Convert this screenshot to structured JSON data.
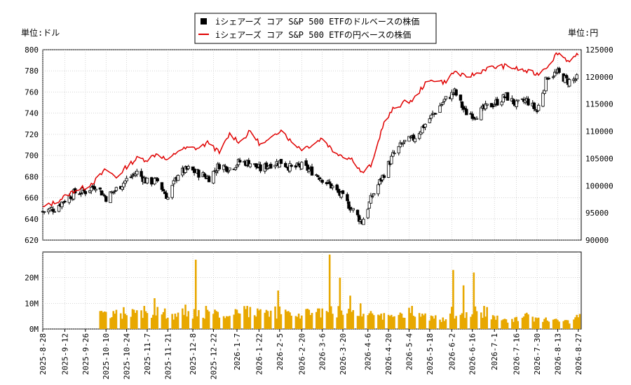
{
  "chart_data": [
    {
      "type": "candlestick+line",
      "legend": [
        "iシェアーズ コア S&P 500 ETFのドルベースの株価",
        "iシェアーズ コア S&P 500 ETFの円ベースの株価"
      ],
      "legend_position": "top-center",
      "left_unit": "単位:ドル",
      "right_unit": "単位:円",
      "ylim_left": [
        620,
        800
      ],
      "ylim_right": [
        90000,
        125000
      ],
      "yticks_left": [
        620,
        640,
        660,
        680,
        700,
        720,
        740,
        760,
        780,
        800
      ],
      "yticks_right": [
        90000,
        95000,
        100000,
        105000,
        110000,
        115000,
        120000,
        125000
      ],
      "grid": true,
      "dollar_close_weekly": [
        [
          "2025-08-28",
          647
        ],
        [
          "2025-09-05",
          650
        ],
        [
          "2025-09-12",
          658
        ],
        [
          "2025-09-19",
          665
        ],
        [
          "2025-09-26",
          666
        ],
        [
          "2025-10-03",
          672
        ],
        [
          "2025-10-10",
          660
        ],
        [
          "2025-10-17",
          668
        ],
        [
          "2025-10-24",
          677
        ],
        [
          "2025-10-31",
          684
        ],
        [
          "2025-11-07",
          675
        ],
        [
          "2025-11-14",
          676
        ],
        [
          "2025-11-21",
          660
        ],
        [
          "2025-11-28",
          683
        ],
        [
          "2025-12-05",
          687
        ],
        [
          "2025-12-12",
          683
        ],
        [
          "2025-12-19",
          679
        ],
        [
          "2025-12-26",
          691
        ],
        [
          "2026-01-02",
          688
        ],
        [
          "2026-01-09",
          694
        ],
        [
          "2026-01-16",
          693
        ],
        [
          "2026-01-23",
          687
        ],
        [
          "2026-01-30",
          692
        ],
        [
          "2026-02-06",
          694
        ],
        [
          "2026-02-13",
          688
        ],
        [
          "2026-02-20",
          690
        ],
        [
          "2026-02-27",
          685
        ],
        [
          "2026-03-06",
          678
        ],
        [
          "2026-03-13",
          670
        ],
        [
          "2026-03-20",
          660
        ],
        [
          "2026-03-27",
          648
        ],
        [
          "2026-04-02",
          637
        ],
        [
          "2026-04-09",
          662
        ],
        [
          "2026-04-16",
          680
        ],
        [
          "2026-04-23",
          700
        ],
        [
          "2026-04-30",
          712
        ],
        [
          "2026-05-07",
          716
        ],
        [
          "2026-05-14",
          728
        ],
        [
          "2026-05-21",
          740
        ],
        [
          "2026-05-28",
          752
        ],
        [
          "2026-06-04",
          760
        ],
        [
          "2026-06-11",
          741
        ],
        [
          "2026-06-18",
          738
        ],
        [
          "2026-06-25",
          745
        ],
        [
          "2026-07-02",
          750
        ],
        [
          "2026-07-09",
          756
        ],
        [
          "2026-07-16",
          748
        ],
        [
          "2026-07-23",
          752
        ],
        [
          "2026-07-30",
          742
        ],
        [
          "2026-08-06",
          775
        ],
        [
          "2026-08-13",
          778
        ],
        [
          "2026-08-20",
          770
        ],
        [
          "2026-08-27",
          773
        ]
      ],
      "yen_close_weekly": [
        [
          "2025-08-28",
          96000
        ],
        [
          "2025-09-05",
          96900
        ],
        [
          "2025-09-12",
          98000
        ],
        [
          "2025-09-19",
          99200
        ],
        [
          "2025-09-26",
          99700
        ],
        [
          "2025-10-03",
          101000
        ],
        [
          "2025-10-10",
          103000
        ],
        [
          "2025-10-17",
          101500
        ],
        [
          "2025-10-24",
          103500
        ],
        [
          "2025-10-31",
          105000
        ],
        [
          "2025-11-07",
          104800
        ],
        [
          "2025-11-14",
          106000
        ],
        [
          "2025-11-21",
          104500
        ],
        [
          "2025-11-28",
          106500
        ],
        [
          "2025-12-05",
          106900
        ],
        [
          "2025-12-12",
          106900
        ],
        [
          "2025-12-19",
          108000
        ],
        [
          "2025-12-26",
          106000
        ],
        [
          "2026-01-02",
          109500
        ],
        [
          "2026-01-09",
          108000
        ],
        [
          "2026-01-16",
          110000
        ],
        [
          "2026-01-23",
          107500
        ],
        [
          "2026-01-30",
          108500
        ],
        [
          "2026-02-06",
          110500
        ],
        [
          "2026-02-13",
          108000
        ],
        [
          "2026-02-20",
          106800
        ],
        [
          "2026-02-27",
          107500
        ],
        [
          "2026-03-06",
          108800
        ],
        [
          "2026-03-13",
          106500
        ],
        [
          "2026-03-20",
          105500
        ],
        [
          "2026-03-27",
          104800
        ],
        [
          "2026-04-02",
          102300
        ],
        [
          "2026-04-09",
          104000
        ],
        [
          "2026-04-16",
          111000
        ],
        [
          "2026-04-23",
          114000
        ],
        [
          "2026-04-30",
          115200
        ],
        [
          "2026-05-07",
          115800
        ],
        [
          "2026-05-14",
          118500
        ],
        [
          "2026-05-21",
          119500
        ],
        [
          "2026-05-28",
          119000
        ],
        [
          "2026-06-04",
          121000
        ],
        [
          "2026-06-11",
          120000
        ],
        [
          "2026-06-18",
          120500
        ],
        [
          "2026-06-25",
          121500
        ],
        [
          "2026-07-02",
          121800
        ],
        [
          "2026-07-09",
          122000
        ],
        [
          "2026-07-16",
          121500
        ],
        [
          "2026-07-23",
          121000
        ],
        [
          "2026-07-30",
          120500
        ],
        [
          "2026-08-06",
          122000
        ],
        [
          "2026-08-13",
          124500
        ],
        [
          "2026-08-20",
          123000
        ],
        [
          "2026-08-27",
          124000
        ]
      ]
    },
    {
      "type": "bar",
      "ylim": [
        0,
        30000000
      ],
      "ytick_labels": [
        "0M",
        "10M",
        "20M"
      ],
      "grid": true,
      "xtick_labels": [
        "2025-8-28",
        "2025-9-12",
        "2025-9-26",
        "2025-10-10",
        "2025-10-24",
        "2025-11-7",
        "2025-11-21",
        "2025-12-8",
        "2025-12-22",
        "2026-1-7",
        "2026-1-22",
        "2026-2-5",
        "2026-2-20",
        "2026-3-6",
        "2026-3-20",
        "2026-4-6",
        "2026-4-20",
        "2026-5-4",
        "2026-5-18",
        "2026-6-2",
        "2026-6-16",
        "2026-7-1",
        "2026-7-16",
        "2026-7-30",
        "2026-8-13",
        "2026-8-27"
      ],
      "volume_weekly": [
        [
          "2025-10-06",
          6500000
        ],
        [
          "2025-10-13",
          7000000
        ],
        [
          "2025-10-20",
          8500000
        ],
        [
          "2025-10-27",
          7500000
        ],
        [
          "2025-11-03",
          9000000
        ],
        [
          "2025-11-10",
          12000000
        ],
        [
          "2025-11-17",
          8000000
        ],
        [
          "2025-11-24",
          6000000
        ],
        [
          "2025-12-01",
          9500000
        ],
        [
          "2025-12-08",
          27000000
        ],
        [
          "2025-12-15",
          9000000
        ],
        [
          "2025-12-22",
          7000000
        ],
        [
          "2025-12-29",
          5000000
        ],
        [
          "2026-01-05",
          7500000
        ],
        [
          "2026-01-12",
          9000000
        ],
        [
          "2026-01-19",
          8000000
        ],
        [
          "2026-01-26",
          7000000
        ],
        [
          "2026-02-02",
          15000000
        ],
        [
          "2026-02-09",
          7000000
        ],
        [
          "2026-02-16",
          6000000
        ],
        [
          "2026-02-23",
          7500000
        ],
        [
          "2026-03-02",
          8000000
        ],
        [
          "2026-03-09",
          29000000
        ],
        [
          "2026-03-16",
          20000000
        ],
        [
          "2026-03-23",
          13000000
        ],
        [
          "2026-03-30",
          10000000
        ],
        [
          "2026-04-06",
          7000000
        ],
        [
          "2026-04-13",
          6000000
        ],
        [
          "2026-04-20",
          5500000
        ],
        [
          "2026-04-27",
          6000000
        ],
        [
          "2026-05-04",
          9000000
        ],
        [
          "2026-05-11",
          6000000
        ],
        [
          "2026-05-18",
          5000000
        ],
        [
          "2026-05-25",
          4500000
        ],
        [
          "2026-06-01",
          23000000
        ],
        [
          "2026-06-08",
          17000000
        ],
        [
          "2026-06-15",
          22000000
        ],
        [
          "2026-06-22",
          9000000
        ],
        [
          "2026-06-29",
          5000000
        ],
        [
          "2026-07-06",
          4000000
        ],
        [
          "2026-07-13",
          4500000
        ],
        [
          "2026-07-20",
          6000000
        ],
        [
          "2026-07-27",
          4500000
        ],
        [
          "2026-08-03",
          4500000
        ],
        [
          "2026-08-10",
          4000000
        ],
        [
          "2026-08-17",
          3500000
        ],
        [
          "2026-08-24",
          5500000
        ]
      ]
    }
  ]
}
